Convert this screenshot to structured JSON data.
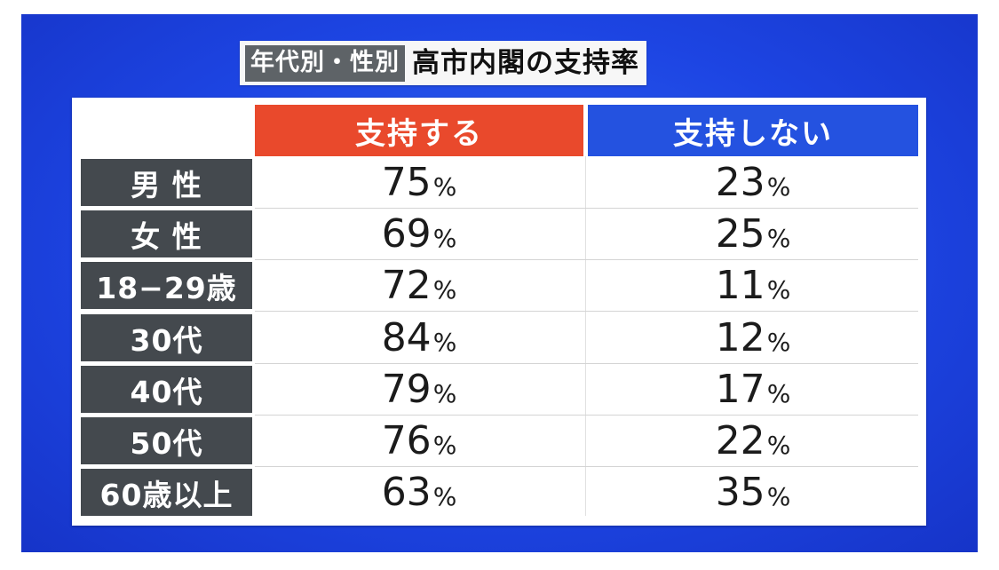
{
  "title": {
    "tag": "年代別・性別",
    "main": "高市内閣の支持率"
  },
  "chart_data": {
    "type": "table",
    "title": "年代別・性別 高市内閣の支持率",
    "columns": [
      "支持する",
      "支持しない"
    ],
    "column_colors": [
      "#e9492c",
      "#2452e0"
    ],
    "rows": [
      {
        "label": "男性",
        "label_display": "男 性",
        "support": "75",
        "oppose": "23"
      },
      {
        "label": "女性",
        "label_display": "女 性",
        "support": "69",
        "oppose": "25"
      },
      {
        "label": "18-29歳",
        "label_display": "18−29歳",
        "support": "72",
        "oppose": "11"
      },
      {
        "label": "30代",
        "label_display": "30代",
        "support": "84",
        "oppose": "12"
      },
      {
        "label": "40代",
        "label_display": "40代",
        "support": "79",
        "oppose": "17"
      },
      {
        "label": "50代",
        "label_display": "50代",
        "support": "76",
        "oppose": "22"
      },
      {
        "label": "60歳以上",
        "label_display": "60歳以上",
        "support": "63",
        "oppose": "35"
      }
    ],
    "unit": "%"
  }
}
